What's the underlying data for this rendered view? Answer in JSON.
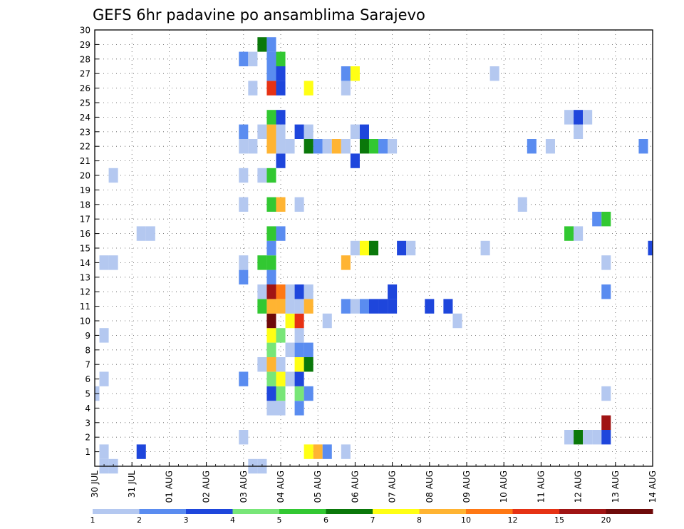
{
  "chart_data": {
    "type": "heatmap",
    "title": "GEFS 6hr padavine po ansamblima Sarajevo",
    "x_tick_labels": [
      "30 JUL",
      "31 JUL",
      "01 AUG",
      "02 AUG",
      "03 AUG",
      "04 AUG",
      "05 AUG",
      "06 AUG",
      "07 AUG",
      "08 AUG",
      "09 AUG",
      "10 AUG",
      "11 AUG",
      "12 AUG",
      "13 AUG",
      "14 AUG"
    ],
    "y_tick_labels": [
      "1",
      "2",
      "3",
      "4",
      "5",
      "6",
      "7",
      "8",
      "9",
      "10",
      "11",
      "12",
      "13",
      "14",
      "15",
      "16",
      "17",
      "18",
      "19",
      "20",
      "21",
      "22",
      "23",
      "24",
      "25",
      "26",
      "27",
      "28",
      "29",
      "30"
    ],
    "xlim_days": [
      0,
      15
    ],
    "ylim": [
      0,
      30
    ],
    "time_step_hours": 6,
    "grid": true,
    "colorbar": {
      "labels": [
        "1",
        "2",
        "3",
        "4",
        "5",
        "6",
        "7",
        "8",
        "10",
        "12",
        "15",
        "20"
      ],
      "colors": [
        "#b4c8f0",
        "#5a8cf0",
        "#1e46dc",
        "#78e678",
        "#32c832",
        "#0a780a",
        "#ffff14",
        "#ffb432",
        "#ff7814",
        "#e63214",
        "#a01414",
        "#6e0a0a"
      ]
    },
    "cells_note": "each cell: [day_offset_from_30_JUL_00Z, member, precip_class_index]",
    "cells": [
      [
        0.25,
        0,
        0
      ],
      [
        0.5,
        0,
        0
      ],
      [
        4.25,
        0,
        0
      ],
      [
        4.5,
        0,
        0
      ],
      [
        0.25,
        1,
        0
      ],
      [
        1.25,
        1,
        2
      ],
      [
        5.75,
        1,
        6
      ],
      [
        6.0,
        1,
        7
      ],
      [
        6.25,
        1,
        1
      ],
      [
        6.75,
        1,
        0
      ],
      [
        4.0,
        2,
        0
      ],
      [
        12.75,
        2,
        0
      ],
      [
        13.0,
        2,
        5
      ],
      [
        13.25,
        2,
        0
      ],
      [
        13.5,
        2,
        0
      ],
      [
        13.75,
        2,
        2
      ],
      [
        13.75,
        3,
        10
      ],
      [
        4.75,
        4,
        0
      ],
      [
        5.0,
        4,
        0
      ],
      [
        5.5,
        4,
        1
      ],
      [
        0.0,
        5,
        0
      ],
      [
        4.75,
        5,
        2
      ],
      [
        5.0,
        5,
        3
      ],
      [
        5.5,
        5,
        3
      ],
      [
        5.75,
        5,
        1
      ],
      [
        13.75,
        5,
        0
      ],
      [
        0.25,
        6,
        0
      ],
      [
        4.0,
        6,
        1
      ],
      [
        4.75,
        6,
        3
      ],
      [
        5.0,
        6,
        6
      ],
      [
        5.25,
        6,
        0
      ],
      [
        5.5,
        6,
        2
      ],
      [
        4.5,
        7,
        0
      ],
      [
        4.75,
        7,
        7
      ],
      [
        5.0,
        7,
        0
      ],
      [
        5.5,
        7,
        6
      ],
      [
        5.75,
        7,
        5
      ],
      [
        4.75,
        8,
        3
      ],
      [
        5.25,
        8,
        0
      ],
      [
        5.5,
        8,
        1
      ],
      [
        5.75,
        8,
        1
      ],
      [
        0.25,
        9,
        0
      ],
      [
        4.75,
        9,
        6
      ],
      [
        5.0,
        9,
        3
      ],
      [
        5.5,
        9,
        0
      ],
      [
        4.75,
        10,
        11
      ],
      [
        5.25,
        10,
        6
      ],
      [
        5.5,
        10,
        9
      ],
      [
        6.25,
        10,
        0
      ],
      [
        9.75,
        10,
        0
      ],
      [
        4.5,
        11,
        4
      ],
      [
        4.75,
        11,
        7
      ],
      [
        5.0,
        11,
        7
      ],
      [
        5.25,
        11,
        0
      ],
      [
        5.5,
        11,
        0
      ],
      [
        5.75,
        11,
        7
      ],
      [
        6.75,
        11,
        1
      ],
      [
        7.0,
        11,
        0
      ],
      [
        7.25,
        11,
        1
      ],
      [
        7.5,
        11,
        2
      ],
      [
        7.75,
        11,
        2
      ],
      [
        8.0,
        11,
        2
      ],
      [
        9.0,
        11,
        2
      ],
      [
        9.5,
        11,
        2
      ],
      [
        4.5,
        12,
        0
      ],
      [
        4.75,
        12,
        10
      ],
      [
        5.0,
        12,
        8
      ],
      [
        5.25,
        12,
        0
      ],
      [
        5.5,
        12,
        2
      ],
      [
        5.75,
        12,
        0
      ],
      [
        8.0,
        12,
        2
      ],
      [
        13.75,
        12,
        1
      ],
      [
        4.0,
        13,
        1
      ],
      [
        4.75,
        13,
        1
      ],
      [
        0.25,
        14,
        0
      ],
      [
        0.5,
        14,
        0
      ],
      [
        4.0,
        14,
        0
      ],
      [
        4.5,
        14,
        4
      ],
      [
        4.75,
        14,
        4
      ],
      [
        6.75,
        14,
        7
      ],
      [
        13.75,
        14,
        0
      ],
      [
        4.75,
        15,
        1
      ],
      [
        7.0,
        15,
        0
      ],
      [
        7.25,
        15,
        6
      ],
      [
        7.5,
        15,
        5
      ],
      [
        8.25,
        15,
        2
      ],
      [
        8.5,
        15,
        0
      ],
      [
        10.5,
        15,
        0
      ],
      [
        15.0,
        15,
        2
      ],
      [
        1.25,
        16,
        0
      ],
      [
        1.5,
        16,
        0
      ],
      [
        4.75,
        16,
        4
      ],
      [
        5.0,
        16,
        1
      ],
      [
        12.75,
        16,
        4
      ],
      [
        13.0,
        16,
        0
      ],
      [
        13.5,
        17,
        1
      ],
      [
        13.75,
        17,
        4
      ],
      [
        4.0,
        18,
        0
      ],
      [
        4.75,
        18,
        4
      ],
      [
        5.0,
        18,
        7
      ],
      [
        5.5,
        18,
        0
      ],
      [
        11.5,
        18,
        0
      ],
      [
        0.5,
        20,
        0
      ],
      [
        4.0,
        20,
        0
      ],
      [
        4.5,
        20,
        0
      ],
      [
        4.75,
        20,
        4
      ],
      [
        5.0,
        21,
        2
      ],
      [
        7.0,
        21,
        2
      ],
      [
        4.0,
        22,
        0
      ],
      [
        4.25,
        22,
        0
      ],
      [
        4.75,
        22,
        7
      ],
      [
        5.0,
        22,
        0
      ],
      [
        5.25,
        22,
        0
      ],
      [
        5.75,
        22,
        5
      ],
      [
        6.0,
        22,
        1
      ],
      [
        6.25,
        22,
        0
      ],
      [
        6.5,
        22,
        7
      ],
      [
        6.75,
        22,
        0
      ],
      [
        7.25,
        22,
        5
      ],
      [
        7.5,
        22,
        4
      ],
      [
        7.75,
        22,
        1
      ],
      [
        8.0,
        22,
        0
      ],
      [
        11.75,
        22,
        1
      ],
      [
        12.25,
        22,
        0
      ],
      [
        14.75,
        22,
        1
      ],
      [
        4.0,
        23,
        1
      ],
      [
        4.5,
        23,
        0
      ],
      [
        4.75,
        23,
        7
      ],
      [
        5.0,
        23,
        0
      ],
      [
        5.5,
        23,
        2
      ],
      [
        5.75,
        23,
        0
      ],
      [
        7.0,
        23,
        0
      ],
      [
        7.25,
        23,
        2
      ],
      [
        13.0,
        23,
        0
      ],
      [
        4.75,
        24,
        4
      ],
      [
        5.0,
        24,
        2
      ],
      [
        12.75,
        24,
        0
      ],
      [
        13.0,
        24,
        2
      ],
      [
        13.25,
        24,
        0
      ],
      [
        4.25,
        26,
        0
      ],
      [
        4.75,
        26,
        9
      ],
      [
        5.0,
        26,
        2
      ],
      [
        5.75,
        26,
        6
      ],
      [
        6.75,
        26,
        0
      ],
      [
        4.75,
        27,
        1
      ],
      [
        5.0,
        27,
        2
      ],
      [
        6.75,
        27,
        1
      ],
      [
        7.0,
        27,
        6
      ],
      [
        10.75,
        27,
        0
      ],
      [
        4.0,
        28,
        1
      ],
      [
        4.25,
        28,
        0
      ],
      [
        4.75,
        28,
        1
      ],
      [
        5.0,
        28,
        4
      ],
      [
        4.5,
        29,
        5
      ],
      [
        4.75,
        29,
        1
      ]
    ]
  }
}
